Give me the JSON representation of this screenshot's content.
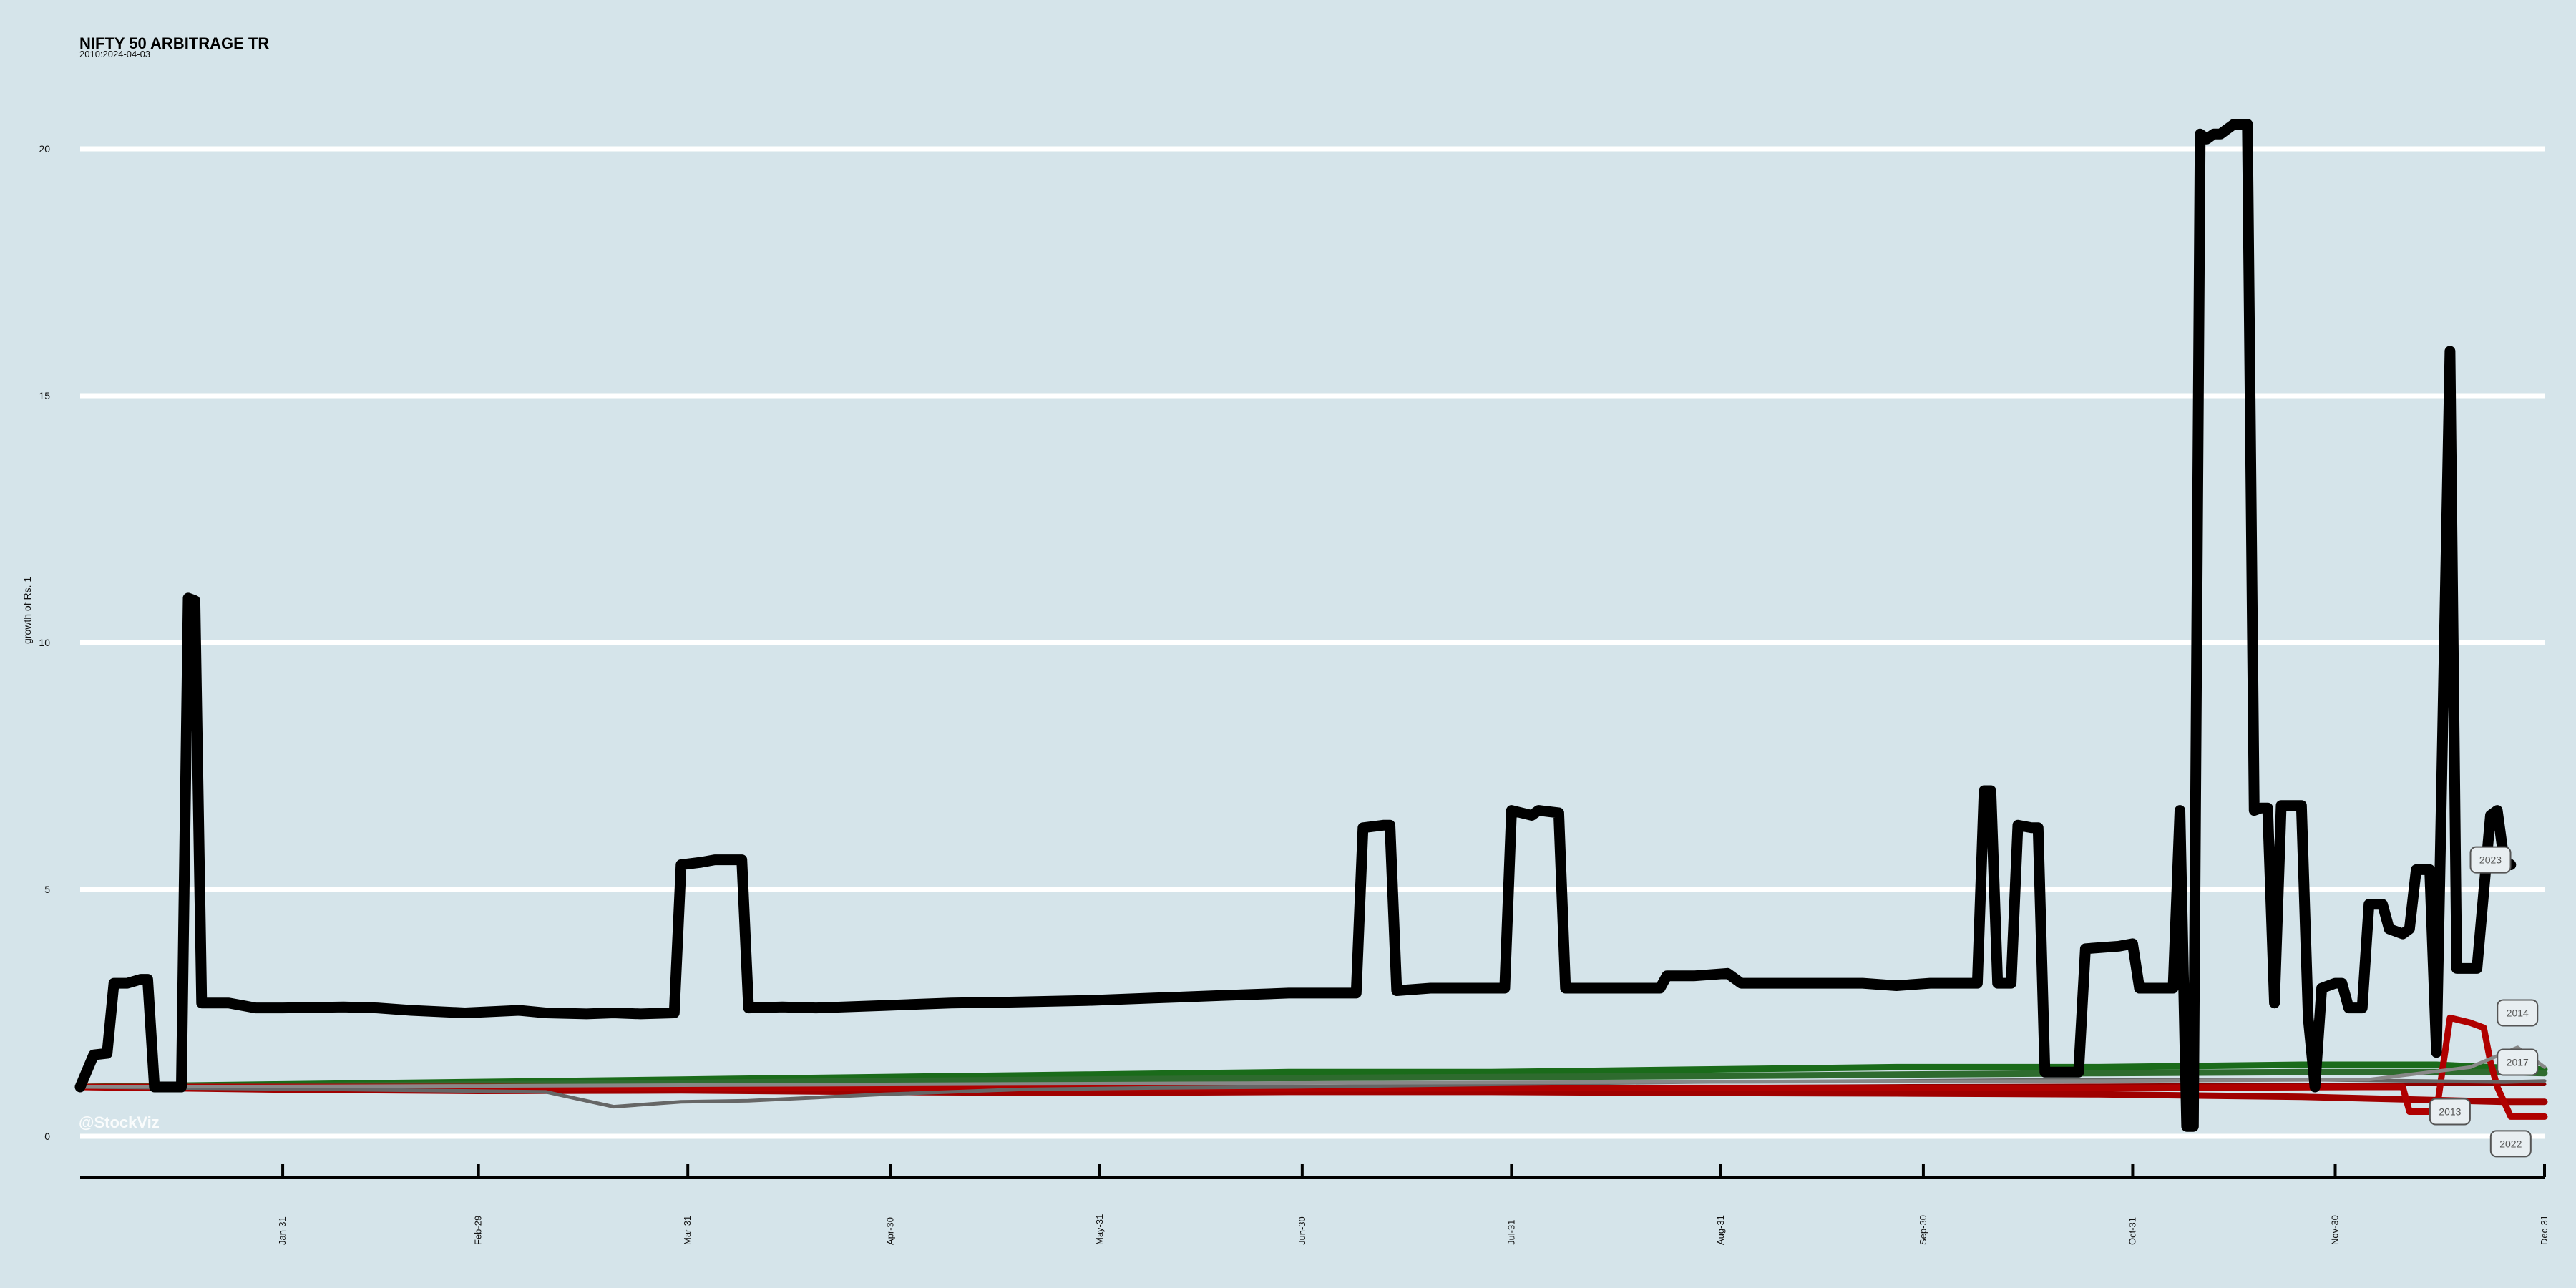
{
  "title": "NIFTY 50 ARBITRAGE TR",
  "subtitle": "2010:2024-04-03",
  "watermark": "@StockViz",
  "chart_data": {
    "type": "line",
    "title": "NIFTY 50 ARBITRAGE TR",
    "subtitle": "2010:2024-04-03",
    "xlabel": "",
    "ylabel": "growth of Rs. 1",
    "xlim": [
      1,
      366
    ],
    "ylim": [
      0,
      21
    ],
    "yticks": [
      0,
      5,
      10,
      15,
      20
    ],
    "xticks": [
      {
        "day": 31,
        "label": "Jan-31"
      },
      {
        "day": 60,
        "label": "Feb-29"
      },
      {
        "day": 91,
        "label": "Mar-31"
      },
      {
        "day": 121,
        "label": "Apr-30"
      },
      {
        "day": 152,
        "label": "May-31"
      },
      {
        "day": 182,
        "label": "Jun-30"
      },
      {
        "day": 213,
        "label": "Jul-31"
      },
      {
        "day": 244,
        "label": "Aug-31"
      },
      {
        "day": 274,
        "label": "Sep-30"
      },
      {
        "day": 305,
        "label": "Oct-31"
      },
      {
        "day": 335,
        "label": "Nov-30"
      },
      {
        "day": 366,
        "label": "Dec-31"
      }
    ],
    "grid": true,
    "legend": "none (end-of-line labels)",
    "end_labels": [
      {
        "label": "2023",
        "day": 358,
        "value": 5.6
      },
      {
        "label": "2014",
        "day": 362,
        "value": 2.5
      },
      {
        "label": "2017",
        "day": 362,
        "value": 1.5
      },
      {
        "label": "2013",
        "day": 352,
        "value": 0.5
      },
      {
        "label": "2022",
        "day": 361,
        "value": -0.15
      }
    ],
    "series": [
      {
        "color": "#000000",
        "points": [
          [
            1,
            1.0
          ],
          [
            3,
            1.65
          ],
          [
            5,
            1.68
          ],
          [
            6,
            3.1
          ],
          [
            8,
            3.1
          ],
          [
            10,
            3.18
          ],
          [
            11,
            3.18
          ],
          [
            12,
            1.0
          ],
          [
            15,
            1.0
          ],
          [
            16,
            1.0
          ],
          [
            17,
            10.9
          ],
          [
            18,
            10.85
          ],
          [
            19,
            2.7
          ],
          [
            23,
            2.7
          ],
          [
            27,
            2.6
          ],
          [
            31,
            2.6
          ],
          [
            40,
            2.62
          ],
          [
            45,
            2.6
          ],
          [
            50,
            2.55
          ],
          [
            58,
            2.5
          ],
          [
            66,
            2.55
          ],
          [
            70,
            2.5
          ],
          [
            76,
            2.48
          ],
          [
            80,
            2.5
          ],
          [
            84,
            2.48
          ],
          [
            89,
            2.5
          ],
          [
            90,
            5.5
          ],
          [
            93,
            5.55
          ],
          [
            95,
            5.6
          ],
          [
            99,
            5.6
          ],
          [
            100,
            2.6
          ],
          [
            105,
            2.62
          ],
          [
            110,
            2.6
          ],
          [
            120,
            2.65
          ],
          [
            130,
            2.7
          ],
          [
            140,
            2.72
          ],
          [
            150,
            2.75
          ],
          [
            160,
            2.8
          ],
          [
            170,
            2.85
          ],
          [
            180,
            2.9
          ],
          [
            190,
            2.9
          ],
          [
            191,
            6.25
          ],
          [
            194,
            6.3
          ],
          [
            195,
            6.3
          ],
          [
            196,
            2.95
          ],
          [
            201,
            3.0
          ],
          [
            212,
            3.0
          ],
          [
            213,
            6.6
          ],
          [
            216,
            6.5
          ],
          [
            217,
            6.6
          ],
          [
            220,
            6.55
          ],
          [
            221,
            3.0
          ],
          [
            230,
            3.0
          ],
          [
            235,
            3.0
          ],
          [
            236,
            3.25
          ],
          [
            240,
            3.25
          ],
          [
            245,
            3.3
          ],
          [
            247,
            3.1
          ],
          [
            250,
            3.1
          ],
          [
            255,
            3.1
          ],
          [
            265,
            3.1
          ],
          [
            270,
            3.05
          ],
          [
            275,
            3.1
          ],
          [
            282,
            3.1
          ],
          [
            283,
            7.0
          ],
          [
            284,
            7.0
          ],
          [
            285,
            3.1
          ],
          [
            286,
            3.1
          ],
          [
            287,
            3.1
          ],
          [
            288,
            6.3
          ],
          [
            290,
            6.25
          ],
          [
            291,
            6.25
          ],
          [
            292,
            1.3
          ],
          [
            296,
            1.3
          ],
          [
            297,
            1.3
          ],
          [
            298,
            3.8
          ],
          [
            303,
            3.85
          ],
          [
            305,
            3.9
          ],
          [
            306,
            3.0
          ],
          [
            311,
            3.0
          ],
          [
            312,
            6.6
          ],
          [
            313,
            0.2
          ],
          [
            314,
            0.2
          ],
          [
            315,
            20.3
          ],
          [
            316,
            20.2
          ],
          [
            317,
            20.3
          ],
          [
            318,
            20.3
          ],
          [
            320,
            20.5
          ],
          [
            322,
            20.5
          ],
          [
            323,
            6.6
          ],
          [
            324,
            6.65
          ],
          [
            325,
            6.65
          ],
          [
            326,
            2.7
          ],
          [
            327,
            6.7
          ],
          [
            330,
            6.7
          ],
          [
            331,
            2.4
          ],
          [
            332,
            1.0
          ],
          [
            333,
            3.0
          ],
          [
            335,
            3.1
          ],
          [
            336,
            3.1
          ],
          [
            337,
            2.6
          ],
          [
            339,
            2.6
          ],
          [
            340,
            4.7
          ],
          [
            342,
            4.7
          ],
          [
            343,
            4.2
          ],
          [
            345,
            4.1
          ],
          [
            346,
            4.2
          ],
          [
            347,
            5.4
          ],
          [
            349,
            5.4
          ],
          [
            350,
            1.7
          ],
          [
            352,
            15.9
          ],
          [
            353,
            3.4
          ],
          [
            356,
            3.4
          ],
          [
            358,
            6.5
          ],
          [
            359,
            6.6
          ],
          [
            360,
            5.6
          ],
          [
            361,
            5.5
          ]
        ]
      },
      {
        "color": "#1a6b1a",
        "points": [
          [
            1,
            1.0
          ],
          [
            30,
            1.05
          ],
          [
            60,
            1.1
          ],
          [
            90,
            1.15
          ],
          [
            120,
            1.2
          ],
          [
            150,
            1.25
          ],
          [
            180,
            1.3
          ],
          [
            210,
            1.3
          ],
          [
            240,
            1.35
          ],
          [
            270,
            1.4
          ],
          [
            300,
            1.4
          ],
          [
            330,
            1.45
          ],
          [
            350,
            1.45
          ],
          [
            366,
            1.35
          ]
        ]
      },
      {
        "color": "#2e6b2e",
        "points": [
          [
            1,
            1.0
          ],
          [
            30,
            1.02
          ],
          [
            60,
            1.05
          ],
          [
            90,
            1.08
          ],
          [
            120,
            1.12
          ],
          [
            150,
            1.15
          ],
          [
            180,
            1.18
          ],
          [
            210,
            1.2
          ],
          [
            240,
            1.22
          ],
          [
            270,
            1.25
          ],
          [
            300,
            1.28
          ],
          [
            330,
            1.3
          ],
          [
            360,
            1.3
          ],
          [
            366,
            1.28
          ]
        ]
      },
      {
        "color": "#8b0000",
        "points": [
          [
            1,
            1.0
          ],
          [
            30,
            0.98
          ],
          [
            60,
            0.95
          ],
          [
            90,
            0.95
          ],
          [
            120,
            0.97
          ],
          [
            150,
            0.98
          ],
          [
            180,
            0.98
          ],
          [
            210,
            1.0
          ],
          [
            240,
            1.0
          ],
          [
            270,
            1.02
          ],
          [
            300,
            1.03
          ],
          [
            330,
            1.05
          ],
          [
            360,
            1.05
          ],
          [
            366,
            1.05
          ]
        ]
      },
      {
        "color": "#a00000",
        "points": [
          [
            1,
            1.0
          ],
          [
            30,
            0.95
          ],
          [
            60,
            0.92
          ],
          [
            90,
            0.93
          ],
          [
            120,
            0.9
          ],
          [
            150,
            0.88
          ],
          [
            180,
            0.9
          ],
          [
            210,
            0.9
          ],
          [
            240,
            0.88
          ],
          [
            270,
            0.87
          ],
          [
            300,
            0.85
          ],
          [
            330,
            0.8
          ],
          [
            360,
            0.7
          ],
          [
            366,
            0.7
          ]
        ]
      },
      {
        "color": "#b00000",
        "points": [
          [
            1,
            1.0
          ],
          [
            60,
            1.0
          ],
          [
            120,
            0.98
          ],
          [
            180,
            0.97
          ],
          [
            240,
            0.98
          ],
          [
            300,
            0.98
          ],
          [
            340,
            1.0
          ],
          [
            345,
            1.0
          ],
          [
            346,
            0.5
          ],
          [
            350,
            0.5
          ],
          [
            352,
            2.4
          ],
          [
            355,
            2.3
          ],
          [
            357,
            2.2
          ],
          [
            358,
            1.5
          ],
          [
            359,
            1.0
          ],
          [
            361,
            0.4
          ],
          [
            366,
            0.4
          ]
        ]
      },
      {
        "color": "#666666",
        "points": [
          [
            1,
            1.0
          ],
          [
            40,
            0.95
          ],
          [
            70,
            0.9
          ],
          [
            75,
            0.75
          ],
          [
            80,
            0.6
          ],
          [
            90,
            0.7
          ],
          [
            100,
            0.72
          ],
          [
            120,
            0.85
          ],
          [
            140,
            0.95
          ],
          [
            160,
            0.98
          ],
          [
            180,
            1.0
          ],
          [
            210,
            1.05
          ],
          [
            240,
            1.1
          ],
          [
            270,
            1.12
          ],
          [
            300,
            1.15
          ],
          [
            330,
            1.15
          ],
          [
            360,
            1.1
          ],
          [
            366,
            1.12
          ]
        ]
      },
      {
        "color": "#888888",
        "points": [
          [
            1,
            1.0
          ],
          [
            60,
            1.02
          ],
          [
            120,
            1.05
          ],
          [
            180,
            1.08
          ],
          [
            240,
            1.1
          ],
          [
            300,
            1.12
          ],
          [
            340,
            1.15
          ],
          [
            355,
            1.4
          ],
          [
            362,
            1.8
          ],
          [
            366,
            1.4
          ]
        ]
      }
    ]
  }
}
